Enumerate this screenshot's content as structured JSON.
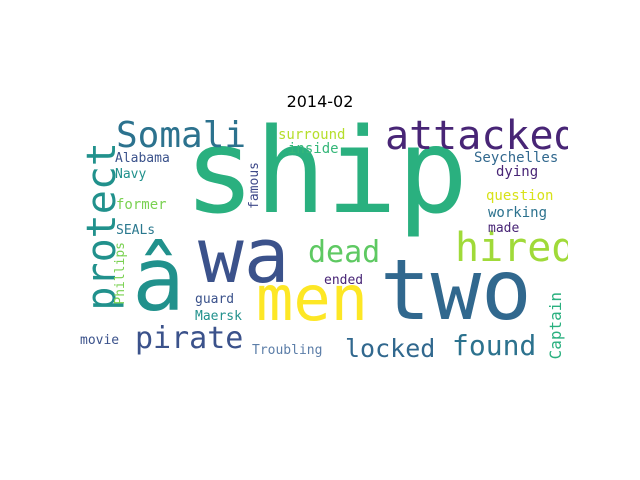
{
  "title": "2014-02",
  "colors": {
    "teal": "#21918c",
    "green": "#2ab07f",
    "darkblue": "#31688e",
    "navy": "#3b528b",
    "purple": "#482576",
    "yellowgreen": "#addc30",
    "lime": "#b5de2b",
    "yellow": "#fde725",
    "lightgreen": "#5ec962",
    "midgreen": "#7ad151",
    "steel": "#26828e"
  },
  "words": [
    {
      "text": "ship",
      "color": "#2ab07f"
    },
    {
      "text": "wa",
      "color": "#3b528b"
    },
    {
      "text": "two",
      "color": "#31688e"
    },
    {
      "text": "â",
      "color": "#21918c"
    },
    {
      "text": "men",
      "color": "#fde725"
    },
    {
      "text": "attacked",
      "color": "#482576"
    },
    {
      "text": "Somali",
      "color": "#2c728e"
    },
    {
      "text": "protect",
      "color": "#21918c"
    },
    {
      "text": "hired",
      "color": "#a0da39"
    },
    {
      "text": "dead",
      "color": "#5ec962"
    },
    {
      "text": "pirate",
      "color": "#3b528b"
    },
    {
      "text": "locked",
      "color": "#31688e"
    },
    {
      "text": "found",
      "color": "#2c728e"
    },
    {
      "text": "Captain",
      "color": "#2ab07f"
    },
    {
      "text": "surround",
      "color": "#b5de2b"
    },
    {
      "text": "inside",
      "color": "#35b779"
    },
    {
      "text": "Seychelles",
      "color": "#31688e"
    },
    {
      "text": "Alabama",
      "color": "#3b528b"
    },
    {
      "text": "Navy",
      "color": "#21918c"
    },
    {
      "text": "dying",
      "color": "#482576"
    },
    {
      "text": "question",
      "color": "#d8e219"
    },
    {
      "text": "famous",
      "color": "#3e4989"
    },
    {
      "text": "former",
      "color": "#7ad151"
    },
    {
      "text": "working",
      "color": "#2c728e"
    },
    {
      "text": "made",
      "color": "#482576"
    },
    {
      "text": "SEALs",
      "color": "#2a788e"
    },
    {
      "text": "Phillips",
      "color": "#7ad151"
    },
    {
      "text": "guard",
      "color": "#3b528b"
    },
    {
      "text": "ended",
      "color": "#482576"
    },
    {
      "text": "Maersk",
      "color": "#21918c"
    },
    {
      "text": "movie",
      "color": "#3b528b"
    },
    {
      "text": "Troubling",
      "color": "#5c7ea8"
    }
  ]
}
